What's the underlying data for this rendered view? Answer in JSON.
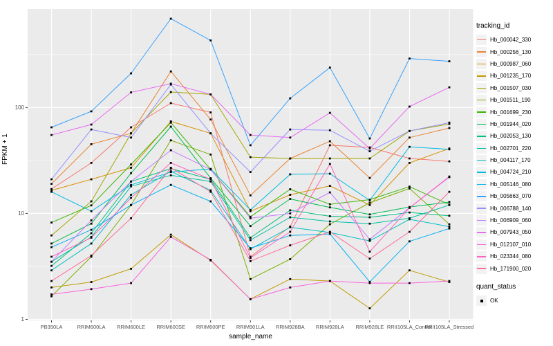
{
  "colors": {
    "panel_bg": "#EBEBEB",
    "grid_major": "#FFFFFF",
    "grid_minor": "#FFFFFF",
    "tick_label": "#4D4D4D",
    "tick_mark": "#333333",
    "marker": "#000000",
    "legend_key_bg": "#F2F2F2"
  },
  "chart_data": {
    "type": "line",
    "title": "",
    "xlabel": "sample_name",
    "ylabel": "FPKM + 1",
    "x_categories": [
      "PB350LA",
      "RRIM600LA",
      "RRIM600LE",
      "RRIM600SE",
      "RRIM600PE",
      "RRIM901LA",
      "RRIM928BA",
      "RRIM928LA",
      "RRIM928LE",
      "RRII105LA_Control",
      "RRII105LA_Stressed"
    ],
    "y_scale": "log10",
    "y_ticks": [
      1,
      10,
      100
    ],
    "y_minor_ticks": [
      3.162,
      31.62,
      316.2
    ],
    "ylim_log10": [
      -0.01,
      2.93
    ],
    "grid": true,
    "legend_position": "right",
    "legend_title": "tracking_id",
    "marker": "black-square",
    "series": [
      {
        "name": "Hb_000042_330",
        "color": "#F8766D",
        "values": [
          17,
          30,
          65,
          110,
          90,
          3.9,
          7.5,
          44,
          42,
          33,
          31
        ]
      },
      {
        "name": "Hb_000256_130",
        "color": "#EA8331",
        "values": [
          19,
          45,
          57,
          219,
          77,
          14.8,
          33,
          48,
          21.6,
          52,
          64
        ]
      },
      {
        "name": "Hb_000987_060",
        "color": "#D89000",
        "values": [
          16.5,
          21,
          27,
          74,
          57,
          10.5,
          15,
          18.2,
          12,
          30,
          41
        ]
      },
      {
        "name": "Hb_001235_170",
        "color": "#C09B00",
        "values": [
          2.0,
          2.25,
          3.0,
          6.3,
          3.6,
          1.55,
          2.4,
          2.3,
          1.27,
          2.9,
          2.25
        ]
      },
      {
        "name": "Hb_001507_030",
        "color": "#A3A500",
        "values": [
          6.2,
          13,
          57,
          140,
          133,
          34,
          33,
          33,
          33,
          60,
          70
        ]
      },
      {
        "name": "Hb_001511_190",
        "color": "#7CAE00",
        "values": [
          1.65,
          3.9,
          12,
          49,
          36,
          2.4,
          3.7,
          7.9,
          12.6,
          17.2,
          7.9
        ]
      },
      {
        "name": "Hb_001699_230",
        "color": "#39B600",
        "values": [
          8.2,
          11.9,
          29,
          72,
          26,
          9.3,
          16.9,
          12.2,
          13.5,
          17.9,
          12.1
        ]
      },
      {
        "name": "Hb_001944_020",
        "color": "#00BB4E",
        "values": [
          5.2,
          8.0,
          24,
          66,
          21.5,
          7.6,
          13.7,
          11.4,
          9.8,
          11.5,
          12.8
        ]
      },
      {
        "name": "Hb_002053_130",
        "color": "#00BF7D",
        "values": [
          3.2,
          6.5,
          20,
          26.5,
          21,
          5.9,
          10.7,
          9.4,
          9.2,
          10.2,
          9.5
        ]
      },
      {
        "name": "Hb_002701_220",
        "color": "#00C1A7",
        "values": [
          3.5,
          6.0,
          18,
          22.9,
          20,
          5.6,
          9.2,
          8.4,
          8.0,
          9.0,
          12.0
        ]
      },
      {
        "name": "Hb_004117_170",
        "color": "#00BFC4",
        "values": [
          2.9,
          5.2,
          15,
          25,
          16.5,
          4.6,
          7.4,
          6.6,
          5.5,
          8.8,
          7.5
        ]
      },
      {
        "name": "Hb_004724_210",
        "color": "#00BAE0",
        "values": [
          16,
          10.5,
          18.6,
          24.6,
          26.3,
          10.8,
          23.4,
          23.7,
          13.3,
          42.5,
          40.3
        ]
      },
      {
        "name": "Hb_005146_080",
        "color": "#00B0F6",
        "values": [
          4.8,
          7.0,
          12,
          18.6,
          13,
          4.7,
          6.2,
          6.4,
          2.26,
          5.45,
          7.2
        ]
      },
      {
        "name": "Hb_005663_070",
        "color": "#35A2FF",
        "values": [
          65,
          92,
          210,
          690,
          430,
          44,
          122,
          238,
          51,
          290,
          273
        ]
      },
      {
        "name": "Hb_006788_140",
        "color": "#9590FF",
        "values": [
          21,
          62,
          52,
          165,
          57,
          24.6,
          62,
          61,
          38.6,
          60,
          72
        ]
      },
      {
        "name": "Hb_006909_060",
        "color": "#C77CFF",
        "values": [
          3.5,
          8.6,
          20,
          39.5,
          26,
          9.0,
          10.0,
          15.8,
          5.7,
          11.3,
          22
        ]
      },
      {
        "name": "Hb_007943_050",
        "color": "#E76BF3",
        "values": [
          55,
          69,
          139,
          168,
          133,
          55,
          52,
          89,
          41,
          102,
          155
        ]
      },
      {
        "name": "Hb_012107_010",
        "color": "#FA62DB",
        "values": [
          1.72,
          1.93,
          2.2,
          6.0,
          3.65,
          1.55,
          2.0,
          2.3,
          2.2,
          2.2,
          2.3
        ]
      },
      {
        "name": "Hb_023344_080",
        "color": "#FF62BC",
        "values": [
          3.9,
          5.9,
          14,
          30,
          21,
          3.8,
          6.7,
          29.3,
          4.35,
          11.3,
          22.3
        ]
      },
      {
        "name": "Hb_171900_020",
        "color": "#FF6A98",
        "values": [
          2.3,
          4.0,
          9.0,
          27,
          16,
          3.55,
          5.0,
          6.7,
          3.74,
          6.7,
          16
        ]
      }
    ],
    "quant_legend": {
      "title": "quant_status",
      "items": [
        {
          "label": "OK",
          "marker": "black-square",
          "marker_color": "#000000"
        }
      ]
    }
  }
}
